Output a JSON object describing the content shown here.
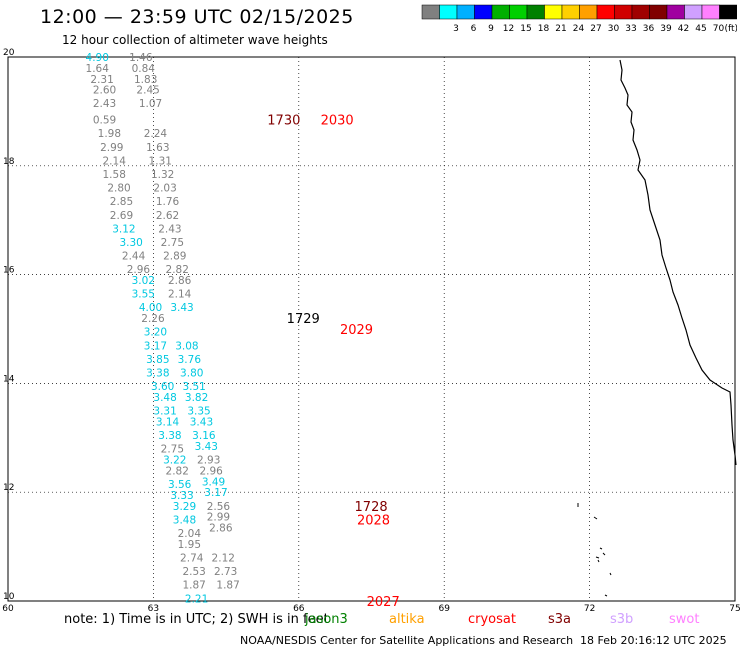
{
  "header": {
    "title": "12:00 — 23:59 UTC 02/15/2025",
    "subtitle": "12 hour collection of altimeter wave heights"
  },
  "color_scale": {
    "colors": [
      "#808080",
      "#00ffff",
      "#00b0ff",
      "#0000ff",
      "#00b000",
      "#00d000",
      "#008000",
      "#ffff00",
      "#ffd000",
      "#ffa000",
      "#ff0000",
      "#d00000",
      "#a00000",
      "#800000",
      "#a000a0",
      "#d0a0ff",
      "#ff80ff",
      "#000000"
    ],
    "labels": [
      "3",
      "6",
      "9",
      "12",
      "15",
      "18",
      "21",
      "24",
      "27",
      "30",
      "33",
      "36",
      "39",
      "42",
      "45",
      "70"
    ],
    "unit": "(ft)"
  },
  "map": {
    "lon_ticks": [
      "60",
      "63",
      "66",
      "69",
      "72",
      "75"
    ],
    "lat_ticks": [
      "20",
      "18",
      "16",
      "14",
      "12",
      "10"
    ],
    "pass_labels": [
      {
        "text": "1730",
        "color": "#800000",
        "lon": 65.35,
        "lat": 18.85
      },
      {
        "text": "2030",
        "color": "#ff0000",
        "lon": 66.45,
        "lat": 18.85
      },
      {
        "text": "1729",
        "color": "#000000",
        "lon": 65.75,
        "lat": 15.2
      },
      {
        "text": "2029",
        "color": "#ff0000",
        "lon": 66.85,
        "lat": 15.0
      },
      {
        "text": "1728",
        "color": "#800000",
        "lon": 67.15,
        "lat": 11.75
      },
      {
        "text": "2028",
        "color": "#ff0000",
        "lon": 67.2,
        "lat": 11.5
      },
      {
        "text": "2027",
        "color": "#ff0000",
        "lon": 67.4,
        "lat": 10.0
      }
    ],
    "wave_labels": [
      {
        "v": "4.90",
        "c": "#00c8e0",
        "lon": 61.6,
        "lat": 20.0
      },
      {
        "v": "1.64",
        "c": "#808080",
        "lon": 61.6,
        "lat": 19.8
      },
      {
        "v": "2.31",
        "c": "#808080",
        "lon": 61.7,
        "lat": 19.6
      },
      {
        "v": "2.60",
        "c": "#808080",
        "lon": 61.75,
        "lat": 19.4
      },
      {
        "v": "2.43",
        "c": "#808080",
        "lon": 61.75,
        "lat": 19.15
      },
      {
        "v": "0.59",
        "c": "#808080",
        "lon": 61.75,
        "lat": 18.85
      },
      {
        "v": "1.98",
        "c": "#808080",
        "lon": 61.85,
        "lat": 18.6
      },
      {
        "v": "2.99",
        "c": "#808080",
        "lon": 61.9,
        "lat": 18.35
      },
      {
        "v": "2.14",
        "c": "#808080",
        "lon": 61.95,
        "lat": 18.1
      },
      {
        "v": "1.58",
        "c": "#808080",
        "lon": 61.95,
        "lat": 17.85
      },
      {
        "v": "2.80",
        "c": "#808080",
        "lon": 62.05,
        "lat": 17.6
      },
      {
        "v": "2.85",
        "c": "#808080",
        "lon": 62.1,
        "lat": 17.35
      },
      {
        "v": "2.69",
        "c": "#808080",
        "lon": 62.1,
        "lat": 17.1
      },
      {
        "v": "3.12",
        "c": "#00c8e0",
        "lon": 62.15,
        "lat": 16.85
      },
      {
        "v": "3.30",
        "c": "#00c8e0",
        "lon": 62.3,
        "lat": 16.6
      },
      {
        "v": "2.44",
        "c": "#808080",
        "lon": 62.35,
        "lat": 16.35
      },
      {
        "v": "2.96",
        "c": "#808080",
        "lon": 62.45,
        "lat": 16.1
      },
      {
        "v": "3.02",
        "c": "#00c8e0",
        "lon": 62.55,
        "lat": 15.9
      },
      {
        "v": "3.55",
        "c": "#00c8e0",
        "lon": 62.55,
        "lat": 15.65
      },
      {
        "v": "4.00",
        "c": "#00c8e0",
        "lon": 62.7,
        "lat": 15.4
      },
      {
        "v": "2.26",
        "c": "#808080",
        "lon": 62.75,
        "lat": 15.2
      },
      {
        "v": "3.20",
        "c": "#00c8e0",
        "lon": 62.8,
        "lat": 14.95
      },
      {
        "v": "3.17",
        "c": "#00c8e0",
        "lon": 62.8,
        "lat": 14.7
      },
      {
        "v": "3.85",
        "c": "#00c8e0",
        "lon": 62.85,
        "lat": 14.45
      },
      {
        "v": "3.38",
        "c": "#00c8e0",
        "lon": 62.85,
        "lat": 14.2
      },
      {
        "v": "3.60",
        "c": "#00c8e0",
        "lon": 62.95,
        "lat": 13.95
      },
      {
        "v": "3.48",
        "c": "#00c8e0",
        "lon": 63.0,
        "lat": 13.75
      },
      {
        "v": "3.31",
        "c": "#00c8e0",
        "lon": 63.0,
        "lat": 13.5
      },
      {
        "v": "3.14",
        "c": "#00c8e0",
        "lon": 63.05,
        "lat": 13.3
      },
      {
        "v": "3.38",
        "c": "#00c8e0",
        "lon": 63.1,
        "lat": 13.05
      },
      {
        "v": "2.75",
        "c": "#808080",
        "lon": 63.15,
        "lat": 12.8
      },
      {
        "v": "3.22",
        "c": "#00c8e0",
        "lon": 63.2,
        "lat": 12.6
      },
      {
        "v": "2.82",
        "c": "#808080",
        "lon": 63.25,
        "lat": 12.4
      },
      {
        "v": "3.56",
        "c": "#00c8e0",
        "lon": 63.3,
        "lat": 12.15
      },
      {
        "v": "3.33",
        "c": "#00c8e0",
        "lon": 63.35,
        "lat": 11.95
      },
      {
        "v": "3.29",
        "c": "#00c8e0",
        "lon": 63.4,
        "lat": 11.75
      },
      {
        "v": "3.48",
        "c": "#00c8e0",
        "lon": 63.4,
        "lat": 11.5
      },
      {
        "v": "2.04",
        "c": "#808080",
        "lon": 63.5,
        "lat": 11.25
      },
      {
        "v": "1.95",
        "c": "#808080",
        "lon": 63.5,
        "lat": 11.05
      },
      {
        "v": "2.74",
        "c": "#808080",
        "lon": 63.55,
        "lat": 10.8
      },
      {
        "v": "2.53",
        "c": "#808080",
        "lon": 63.6,
        "lat": 10.55
      },
      {
        "v": "1.87",
        "c": "#808080",
        "lon": 63.6,
        "lat": 10.3
      },
      {
        "v": "2.21",
        "c": "#00c8e0",
        "lon": 63.65,
        "lat": 10.05
      },
      {
        "v": "1.46",
        "c": "#808080",
        "lon": 62.5,
        "lat": 20.0
      },
      {
        "v": "0.84",
        "c": "#808080",
        "lon": 62.55,
        "lat": 19.8
      },
      {
        "v": "1.83",
        "c": "#808080",
        "lon": 62.6,
        "lat": 19.6
      },
      {
        "v": "2.45",
        "c": "#808080",
        "lon": 62.65,
        "lat": 19.4
      },
      {
        "v": "1.07",
        "c": "#808080",
        "lon": 62.7,
        "lat": 19.15
      },
      {
        "v": "2.24",
        "c": "#808080",
        "lon": 62.8,
        "lat": 18.6
      },
      {
        "v": "1.63",
        "c": "#808080",
        "lon": 62.85,
        "lat": 18.35
      },
      {
        "v": "1.31",
        "c": "#808080",
        "lon": 62.9,
        "lat": 18.1
      },
      {
        "v": "1.32",
        "c": "#808080",
        "lon": 62.95,
        "lat": 17.85
      },
      {
        "v": "2.03",
        "c": "#808080",
        "lon": 63.0,
        "lat": 17.6
      },
      {
        "v": "1.76",
        "c": "#808080",
        "lon": 63.05,
        "lat": 17.35
      },
      {
        "v": "2.62",
        "c": "#808080",
        "lon": 63.05,
        "lat": 17.1
      },
      {
        "v": "2.43",
        "c": "#808080",
        "lon": 63.1,
        "lat": 16.85
      },
      {
        "v": "2.75",
        "c": "#808080",
        "lon": 63.15,
        "lat": 16.6
      },
      {
        "v": "2.89",
        "c": "#808080",
        "lon": 63.2,
        "lat": 16.35
      },
      {
        "v": "2.82",
        "c": "#808080",
        "lon": 63.25,
        "lat": 16.1
      },
      {
        "v": "2.86",
        "c": "#808080",
        "lon": 63.3,
        "lat": 15.9
      },
      {
        "v": "2.14",
        "c": "#808080",
        "lon": 63.3,
        "lat": 15.65
      },
      {
        "v": "3.43",
        "c": "#00c8e0",
        "lon": 63.35,
        "lat": 15.4
      },
      {
        "v": "3.08",
        "c": "#00c8e0",
        "lon": 63.45,
        "lat": 14.7
      },
      {
        "v": "3.76",
        "c": "#00c8e0",
        "lon": 63.5,
        "lat": 14.45
      },
      {
        "v": "3.80",
        "c": "#00c8e0",
        "lon": 63.55,
        "lat": 14.2
      },
      {
        "v": "3.51",
        "c": "#00c8e0",
        "lon": 63.6,
        "lat": 13.95
      },
      {
        "v": "3.82",
        "c": "#00c8e0",
        "lon": 63.65,
        "lat": 13.75
      },
      {
        "v": "3.35",
        "c": "#00c8e0",
        "lon": 63.7,
        "lat": 13.5
      },
      {
        "v": "3.43",
        "c": "#00c8e0",
        "lon": 63.75,
        "lat": 13.3
      },
      {
        "v": "3.16",
        "c": "#00c8e0",
        "lon": 63.8,
        "lat": 13.05
      },
      {
        "v": "3.43",
        "c": "#00c8e0",
        "lon": 63.85,
        "lat": 12.85
      },
      {
        "v": "2.93",
        "c": "#808080",
        "lon": 63.9,
        "lat": 12.6
      },
      {
        "v": "2.96",
        "c": "#808080",
        "lon": 63.95,
        "lat": 12.4
      },
      {
        "v": "3.49",
        "c": "#00c8e0",
        "lon": 64.0,
        "lat": 12.2
      },
      {
        "v": "3.17",
        "c": "#00c8e0",
        "lon": 64.05,
        "lat": 12.0
      },
      {
        "v": "2.56",
        "c": "#808080",
        "lon": 64.1,
        "lat": 11.75
      },
      {
        "v": "2.99",
        "c": "#808080",
        "lon": 64.1,
        "lat": 11.55
      },
      {
        "v": "2.86",
        "c": "#808080",
        "lon": 64.15,
        "lat": 11.35
      },
      {
        "v": "2.12",
        "c": "#808080",
        "lon": 64.2,
        "lat": 10.8
      },
      {
        "v": "2.73",
        "c": "#808080",
        "lon": 64.25,
        "lat": 10.55
      },
      {
        "v": "1.87",
        "c": "#808080",
        "lon": 64.3,
        "lat": 10.3
      }
    ]
  },
  "note": "note: 1) Time is in UTC; 2) SWH is in feet",
  "satellites": [
    {
      "name": "jason3",
      "color": "#008000"
    },
    {
      "name": "altika",
      "color": "#ffa000"
    },
    {
      "name": "cryosat",
      "color": "#ff0000"
    },
    {
      "name": "s3a",
      "color": "#800000"
    },
    {
      "name": "s3b",
      "color": "#d0a0ff"
    },
    {
      "name": "swot",
      "color": "#ff80ff"
    }
  ],
  "footer": {
    "credit": "NOAA/NESDIS Center for Satellite Applications and Research",
    "timestamp": "18 Feb 20:16:12 UTC 2025"
  }
}
